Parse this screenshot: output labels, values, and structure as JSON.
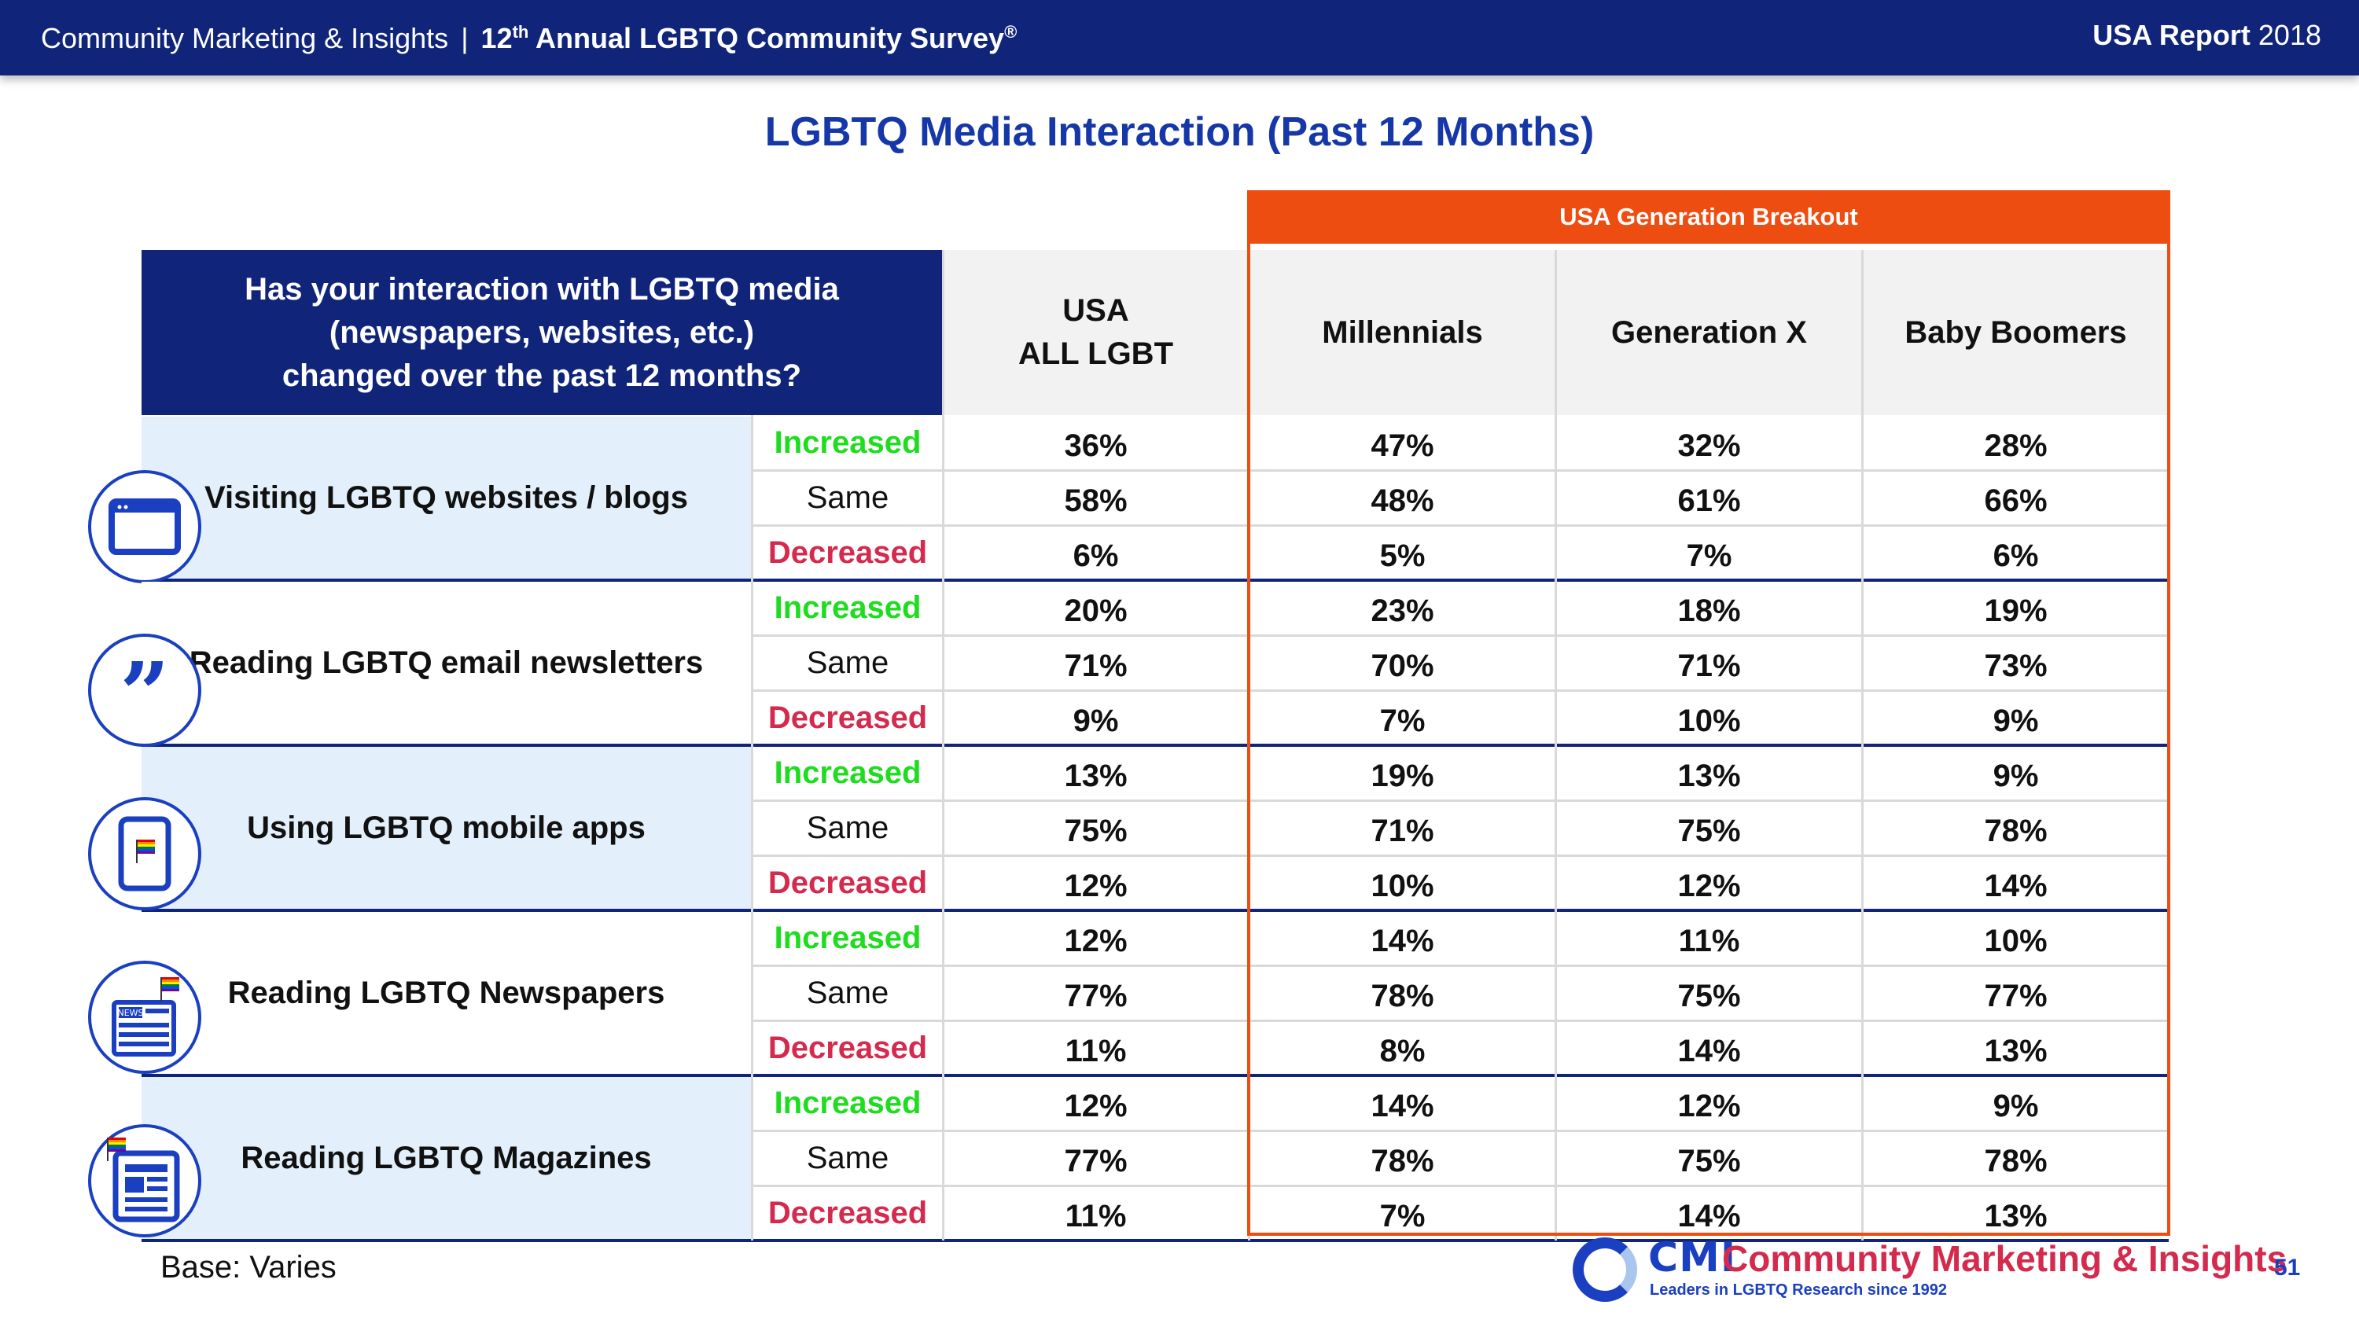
{
  "header": {
    "org": "Community Marketing & Insights",
    "separator": "|",
    "survey_prefix": "12",
    "survey_sup": "th",
    "survey_rest": " Annual LGBTQ Community Survey",
    "survey_mark": "®",
    "report_bold": "USA Report",
    "report_year": "2018"
  },
  "title": "LGBTQ Media Interaction (Past 12 Months)",
  "generation_breakout": "USA Generation Breakout",
  "question": {
    "line1": "Has your interaction with LGBTQ media",
    "line2": "(newspapers, websites, etc.)",
    "line3": "changed over the past 12 months?"
  },
  "columns": {
    "all_line1": "USA",
    "all_line2": "ALL LGBT",
    "millennials": "Millennials",
    "genx": "Generation X",
    "boomers": "Baby Boomers"
  },
  "row_labels": {
    "increased": "Increased",
    "same": "Same",
    "decreased": "Decreased"
  },
  "categories": [
    {
      "name": "Visiting LGBTQ websites / blogs",
      "icon": "browser-window-icon",
      "increased": [
        "36%",
        "47%",
        "32%",
        "28%"
      ],
      "same": [
        "58%",
        "48%",
        "61%",
        "66%"
      ],
      "decreased": [
        "6%",
        "5%",
        "7%",
        "6%"
      ]
    },
    {
      "name": "Reading LGBTQ email newsletters",
      "icon": "quote-marks-icon",
      "increased": [
        "20%",
        "23%",
        "18%",
        "19%"
      ],
      "same": [
        "71%",
        "70%",
        "71%",
        "73%"
      ],
      "decreased": [
        "9%",
        "7%",
        "10%",
        "9%"
      ]
    },
    {
      "name": "Using LGBTQ mobile apps",
      "icon": "mobile-tablet-icon",
      "increased": [
        "13%",
        "19%",
        "13%",
        "9%"
      ],
      "same": [
        "75%",
        "71%",
        "75%",
        "78%"
      ],
      "decreased": [
        "12%",
        "10%",
        "12%",
        "14%"
      ]
    },
    {
      "name": "Reading LGBTQ Newspapers",
      "icon": "newspaper-icon",
      "increased": [
        "12%",
        "14%",
        "11%",
        "10%"
      ],
      "same": [
        "77%",
        "78%",
        "75%",
        "77%"
      ],
      "decreased": [
        "11%",
        "8%",
        "14%",
        "13%"
      ]
    },
    {
      "name": "Reading LGBTQ Magazines",
      "icon": "magazine-icon",
      "increased": [
        "12%",
        "14%",
        "12%",
        "9%"
      ],
      "same": [
        "77%",
        "78%",
        "75%",
        "78%"
      ],
      "decreased": [
        "11%",
        "7%",
        "14%",
        "13%"
      ]
    }
  ],
  "icon_news_label": "NEWS",
  "base": "Base: Varies",
  "logo": {
    "cmi": "CMI",
    "brand": "Community Marketing & Insights",
    "tagline": "Leaders in LGBTQ Research since 1992"
  },
  "page_number": "51",
  "colors": {
    "navy": "#10247a",
    "accent_blue": "#1537a8",
    "orange": "#ee4d11",
    "increased": "#1edc1e",
    "decreased": "#d42a4e",
    "row_shade": "#e3f0fb"
  }
}
